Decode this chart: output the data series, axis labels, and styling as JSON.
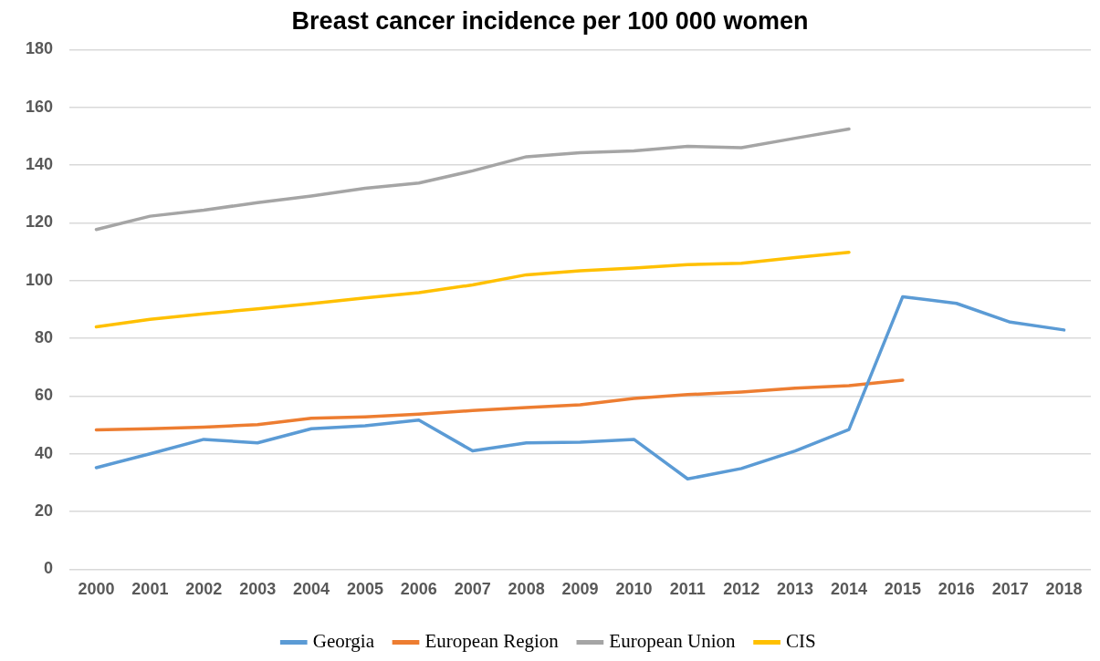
{
  "chart_data": {
    "type": "line",
    "title": "Breast cancer incidence per 100 000 women",
    "categories": [
      "2000",
      "2001",
      "2002",
      "2003",
      "2004",
      "2005",
      "2006",
      "2007",
      "2008",
      "2009",
      "2010",
      "2011",
      "2012",
      "2013",
      "2014",
      "2015",
      "2016",
      "2017",
      "2018"
    ],
    "series": [
      {
        "name": "Georgia",
        "color": "#5b9bd5",
        "values": [
          35.2,
          40,
          45,
          43.8,
          48.7,
          49.7,
          51.7,
          41,
          43.8,
          44,
          45,
          31.3,
          34.9,
          41,
          48.4,
          94.4,
          92.1,
          85.6,
          82.9
        ]
      },
      {
        "name": "European Region",
        "color": "#ed7d31",
        "values": [
          48.3,
          48.7,
          49.2,
          50.1,
          52.3,
          52.8,
          53.7,
          55,
          56,
          57,
          59.2,
          60.5,
          61.4,
          62.7,
          63.6,
          65.5,
          null,
          null,
          null
        ]
      },
      {
        "name": "European Union",
        "color": "#a5a5a5",
        "values": [
          117.7,
          122.3,
          124.4,
          127,
          129.3,
          132,
          133.8,
          138,
          142.9,
          144.3,
          144.9,
          146.5,
          146,
          149.3,
          152.5,
          null,
          null,
          null,
          null
        ]
      },
      {
        "name": "CIS",
        "color": "#ffc000",
        "values": [
          84,
          86.6,
          88.5,
          90.2,
          92,
          94,
          95.8,
          98.5,
          102,
          103.4,
          104.3,
          105.5,
          106,
          108,
          109.8,
          null,
          null,
          null,
          null
        ]
      }
    ],
    "ylim": [
      0,
      180
    ],
    "yticks": [
      0,
      20,
      40,
      60,
      80,
      100,
      120,
      140,
      160,
      180
    ],
    "grid": "y",
    "legend": "bottom",
    "marker": "none",
    "line_style": "solid"
  }
}
